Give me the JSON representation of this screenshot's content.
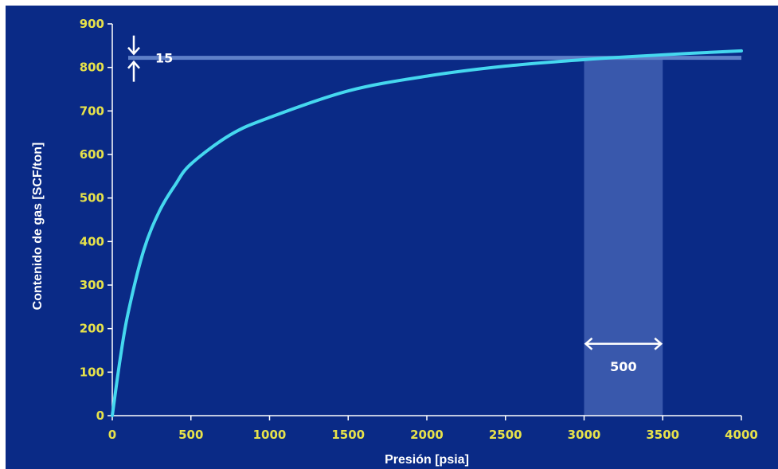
{
  "chart_data": {
    "type": "line",
    "title": "",
    "xlabel": "Presión [psia]",
    "ylabel": "Contenido de gas [SCF/ton]",
    "xlim": [
      0,
      4000
    ],
    "ylim": [
      0,
      900
    ],
    "x_ticks": [
      0,
      500,
      1000,
      1500,
      2000,
      2500,
      3000,
      3500,
      4000
    ],
    "y_ticks": [
      0,
      100,
      200,
      300,
      400,
      500,
      600,
      700,
      800,
      900
    ],
    "grid": false,
    "legend": "none",
    "series": [
      {
        "x": [
          0,
          50,
          100,
          200,
          300,
          400,
          500,
          750,
          1000,
          1500,
          2000,
          2500,
          3000,
          3500,
          4000
        ],
        "y": [
          0,
          130,
          235,
          380,
          470,
          530,
          578,
          645,
          685,
          746,
          780,
          803,
          818,
          829,
          838
        ]
      }
    ],
    "annotations": [
      {
        "label": "15",
        "kind": "vertical-gap",
        "y_reference": 822
      },
      {
        "label": "500",
        "kind": "horizontal-span",
        "x_from": 3000,
        "x_to": 3500
      }
    ],
    "colors": {
      "background": "#0a2a86",
      "curve": "#45d8ef",
      "tick_labels": "#e7e24a",
      "highlight_band": "#4a68b8",
      "reference_line": "#5f80c8",
      "axis_titles": "#ffffff"
    }
  }
}
